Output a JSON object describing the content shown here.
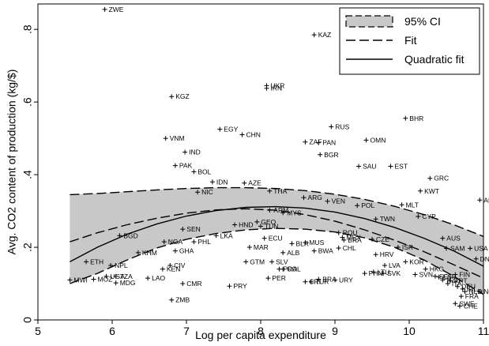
{
  "chart_data": {
    "type": "scatter",
    "xlabel": "Log per capita expenditure",
    "ylabel": "Avg. CO2 content of production (kg/$)",
    "xlim": [
      5,
      11
    ],
    "ylim": [
      0,
      0.87
    ],
    "xticks": [
      5,
      6,
      7,
      8,
      9,
      10,
      11
    ],
    "xtick_labels": [
      "5",
      "6",
      "7",
      "8",
      "9",
      "10",
      "11"
    ],
    "yticks": [
      0,
      0.2,
      0.4,
      0.6,
      0.8
    ],
    "ytick_labels": [
      "0",
      ".2",
      ".4",
      ".6",
      ".8"
    ],
    "grid": false,
    "legend": {
      "position": "top-right",
      "entries": [
        {
          "label": "95% CI",
          "style": "band"
        },
        {
          "label": "Fit",
          "style": "dashed"
        },
        {
          "label": "Quadratic fit",
          "style": "solid"
        }
      ]
    },
    "points": [
      {
        "label": "ZWE",
        "x": 5.9,
        "y": 0.855
      },
      {
        "label": "KAZ",
        "x": 8.72,
        "y": 0.785
      },
      {
        "label": "UKR",
        "x": 8.08,
        "y": 0.645
      },
      {
        "label": "IRN",
        "x": 8.08,
        "y": 0.638
      },
      {
        "label": "KGZ",
        "x": 6.8,
        "y": 0.615
      },
      {
        "label": "BHR",
        "x": 9.95,
        "y": 0.555
      },
      {
        "label": "RUS",
        "x": 8.95,
        "y": 0.532
      },
      {
        "label": "EGY",
        "x": 7.45,
        "y": 0.525
      },
      {
        "label": "CHN",
        "x": 7.75,
        "y": 0.51
      },
      {
        "label": "VNM",
        "x": 6.72,
        "y": 0.5
      },
      {
        "label": "OMN",
        "x": 9.42,
        "y": 0.495
      },
      {
        "label": "ZAF",
        "x": 8.6,
        "y": 0.49
      },
      {
        "label": "PAN",
        "x": 8.78,
        "y": 0.488
      },
      {
        "label": "IND",
        "x": 6.98,
        "y": 0.462
      },
      {
        "label": "BGR",
        "x": 8.8,
        "y": 0.455
      },
      {
        "label": "PAK",
        "x": 6.85,
        "y": 0.425
      },
      {
        "label": "SAU",
        "x": 9.32,
        "y": 0.423
      },
      {
        "label": "EST",
        "x": 9.75,
        "y": 0.423
      },
      {
        "label": "BOL",
        "x": 7.1,
        "y": 0.408
      },
      {
        "label": "GRC",
        "x": 10.28,
        "y": 0.39
      },
      {
        "label": "IDN",
        "x": 7.35,
        "y": 0.38
      },
      {
        "label": "AZE",
        "x": 7.78,
        "y": 0.377
      },
      {
        "label": "THA",
        "x": 8.12,
        "y": 0.355
      },
      {
        "label": "NIC",
        "x": 7.15,
        "y": 0.352
      },
      {
        "label": "KWT",
        "x": 10.15,
        "y": 0.355
      },
      {
        "label": "ARG",
        "x": 8.58,
        "y": 0.337
      },
      {
        "label": "VEN",
        "x": 8.9,
        "y": 0.327
      },
      {
        "label": "ARE",
        "x": 10.95,
        "y": 0.33
      },
      {
        "label": "POL",
        "x": 9.3,
        "y": 0.315
      },
      {
        "label": "MLT",
        "x": 9.9,
        "y": 0.317
      },
      {
        "label": "ARM",
        "x": 8.12,
        "y": 0.302
      },
      {
        "label": "MYS",
        "x": 8.3,
        "y": 0.295
      },
      {
        "label": "CYP",
        "x": 10.12,
        "y": 0.285
      },
      {
        "label": "GEO",
        "x": 7.95,
        "y": 0.27
      },
      {
        "label": "TWN",
        "x": 9.55,
        "y": 0.278
      },
      {
        "label": "HND",
        "x": 7.65,
        "y": 0.262
      },
      {
        "label": "TUN",
        "x": 8.0,
        "y": 0.258
      },
      {
        "label": "SEN",
        "x": 6.95,
        "y": 0.25
      },
      {
        "label": "ROU",
        "x": 9.05,
        "y": 0.24
      },
      {
        "label": "BGD",
        "x": 6.1,
        "y": 0.232
      },
      {
        "label": "LKA",
        "x": 7.4,
        "y": 0.232
      },
      {
        "label": "MEX",
        "x": 9.1,
        "y": 0.227
      },
      {
        "label": "AUS",
        "x": 10.45,
        "y": 0.225
      },
      {
        "label": "ECU",
        "x": 8.05,
        "y": 0.225
      },
      {
        "label": "CZE",
        "x": 9.5,
        "y": 0.222
      },
      {
        "label": "BRA",
        "x": 9.12,
        "y": 0.22
      },
      {
        "label": "NGA",
        "x": 6.7,
        "y": 0.215
      },
      {
        "label": "PHL",
        "x": 7.1,
        "y": 0.215
      },
      {
        "label": "MUS",
        "x": 8.6,
        "y": 0.213
      },
      {
        "label": "BLR",
        "x": 8.42,
        "y": 0.21
      },
      {
        "label": "ISR",
        "x": 9.85,
        "y": 0.2
      },
      {
        "label": "MAR",
        "x": 7.85,
        "y": 0.2
      },
      {
        "label": "CHL",
        "x": 9.05,
        "y": 0.198
      },
      {
        "label": "SAM",
        "x": 10.5,
        "y": 0.197
      },
      {
        "label": "USA",
        "x": 10.82,
        "y": 0.197
      },
      {
        "label": "GHA",
        "x": 6.85,
        "y": 0.19
      },
      {
        "label": "KHM",
        "x": 6.35,
        "y": 0.185
      },
      {
        "label": "BWA",
        "x": 8.72,
        "y": 0.19
      },
      {
        "label": "ALB",
        "x": 8.3,
        "y": 0.185
      },
      {
        "label": "HRV",
        "x": 9.55,
        "y": 0.18
      },
      {
        "label": "DNK",
        "x": 10.9,
        "y": 0.168
      },
      {
        "label": "ETH",
        "x": 5.65,
        "y": 0.16
      },
      {
        "label": "GTM",
        "x": 7.8,
        "y": 0.16
      },
      {
        "label": "SLV",
        "x": 8.15,
        "y": 0.16
      },
      {
        "label": "KOR",
        "x": 9.95,
        "y": 0.16
      },
      {
        "label": "NPL",
        "x": 5.98,
        "y": 0.15
      },
      {
        "label": "CIV",
        "x": 6.78,
        "y": 0.15
      },
      {
        "label": "LVA",
        "x": 9.67,
        "y": 0.15
      },
      {
        "label": "KEN",
        "x": 6.68,
        "y": 0.14
      },
      {
        "label": "COL",
        "x": 8.3,
        "y": 0.14
      },
      {
        "label": "PRA",
        "x": 8.25,
        "y": 0.14
      },
      {
        "label": "HKG",
        "x": 10.22,
        "y": 0.14
      },
      {
        "label": "LTU",
        "x": 9.52,
        "y": 0.132
      },
      {
        "label": "PHN",
        "x": 9.4,
        "y": 0.128
      },
      {
        "label": "SVK",
        "x": 9.65,
        "y": 0.128
      },
      {
        "label": "SVN",
        "x": 10.08,
        "y": 0.125
      },
      {
        "label": "FIN",
        "x": 10.62,
        "y": 0.125
      },
      {
        "label": "SGP",
        "x": 10.35,
        "y": 0.12
      },
      {
        "label": "ESP",
        "x": 10.4,
        "y": 0.118
      },
      {
        "label": "UGA",
        "x": 5.92,
        "y": 0.12
      },
      {
        "label": "TZA",
        "x": 6.05,
        "y": 0.12
      },
      {
        "label": "LAO",
        "x": 6.48,
        "y": 0.115
      },
      {
        "label": "PER",
        "x": 8.1,
        "y": 0.115
      },
      {
        "label": "BRA",
        "x": 8.78,
        "y": 0.112
      },
      {
        "label": "MWI",
        "x": 5.43,
        "y": 0.11
      },
      {
        "label": "URY",
        "x": 9.0,
        "y": 0.11
      },
      {
        "label": "MOZ",
        "x": 5.75,
        "y": 0.112
      },
      {
        "label": "NZL",
        "x": 10.45,
        "y": 0.11
      },
      {
        "label": "PRT",
        "x": 10.55,
        "y": 0.108
      },
      {
        "label": "TUR",
        "x": 8.68,
        "y": 0.105
      },
      {
        "label": "CRI",
        "x": 8.6,
        "y": 0.105
      },
      {
        "label": "MDG",
        "x": 6.05,
        "y": 0.102
      },
      {
        "label": "CMR",
        "x": 6.95,
        "y": 0.1
      },
      {
        "label": "ITA",
        "x": 10.52,
        "y": 0.1
      },
      {
        "label": "DEU",
        "x": 10.65,
        "y": 0.092
      },
      {
        "label": "PRY",
        "x": 7.58,
        "y": 0.093
      },
      {
        "label": "IRL",
        "x": 10.72,
        "y": 0.085
      },
      {
        "label": "NLD",
        "x": 10.75,
        "y": 0.078
      },
      {
        "label": "NOR",
        "x": 10.95,
        "y": 0.078
      },
      {
        "label": "FRA",
        "x": 10.7,
        "y": 0.065
      },
      {
        "label": "ZMB",
        "x": 6.8,
        "y": 0.055
      },
      {
        "label": "SWE",
        "x": 10.62,
        "y": 0.045
      },
      {
        "label": "CHE",
        "x": 10.68,
        "y": 0.038
      }
    ],
    "fit_curve": {
      "x": [
        5.43,
        5.8,
        6.2,
        6.6,
        7.0,
        7.4,
        7.8,
        8.2,
        8.6,
        9.0,
        9.4,
        9.8,
        10.2,
        10.6,
        11.0
      ],
      "y": [
        0.215,
        0.24,
        0.262,
        0.28,
        0.294,
        0.303,
        0.306,
        0.302,
        0.29,
        0.272,
        0.248,
        0.22,
        0.188,
        0.152,
        0.115
      ]
    },
    "quadratic_fit": {
      "x": [
        5.43,
        5.8,
        6.2,
        6.6,
        7.0,
        7.4,
        7.8,
        8.2,
        8.6,
        9.0,
        9.4,
        9.8,
        10.2,
        10.6,
        11.0
      ],
      "y": [
        0.16,
        0.2,
        0.236,
        0.264,
        0.286,
        0.301,
        0.31,
        0.312,
        0.308,
        0.297,
        0.279,
        0.255,
        0.225,
        0.19,
        0.148
      ]
    },
    "ci_band": {
      "x": [
        5.43,
        5.8,
        6.2,
        6.6,
        7.0,
        7.4,
        7.8,
        8.2,
        8.6,
        9.0,
        9.4,
        9.8,
        10.2,
        10.6,
        11.0
      ],
      "upper": [
        0.345,
        0.348,
        0.353,
        0.358,
        0.362,
        0.364,
        0.364,
        0.362,
        0.356,
        0.346,
        0.332,
        0.313,
        0.29,
        0.262,
        0.23
      ],
      "lower": [
        0.1,
        0.128,
        0.165,
        0.198,
        0.222,
        0.238,
        0.248,
        0.252,
        0.25,
        0.242,
        0.226,
        0.2,
        0.165,
        0.12,
        0.07
      ]
    }
  }
}
